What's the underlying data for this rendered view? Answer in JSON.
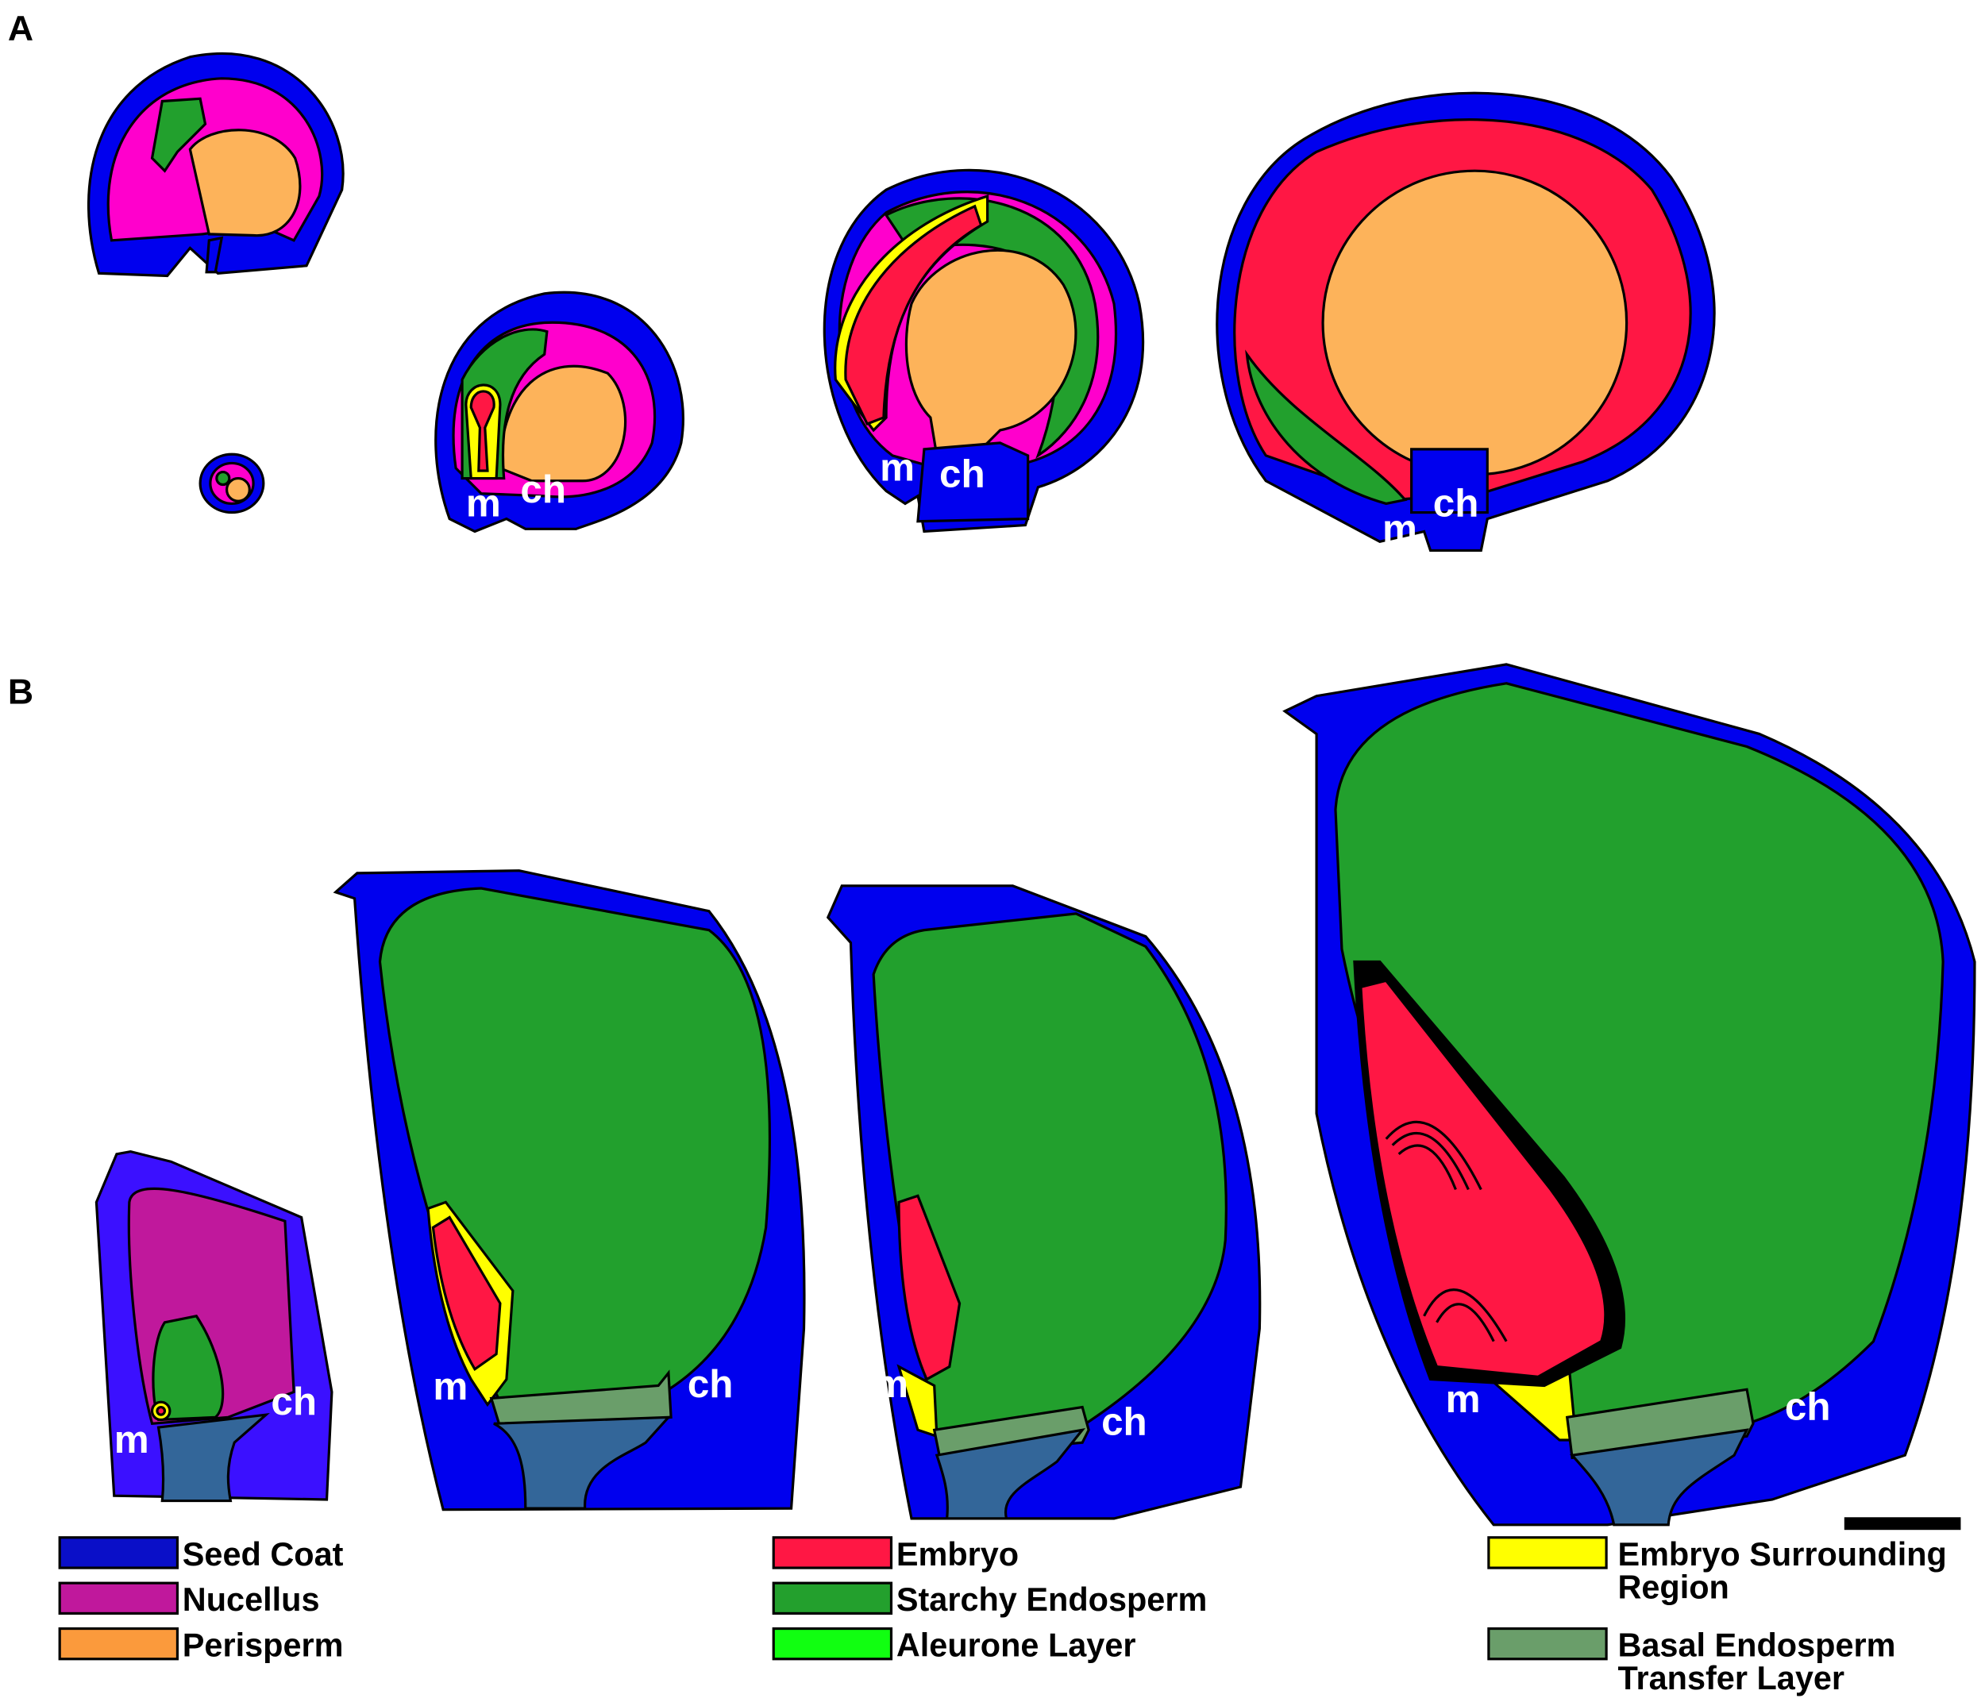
{
  "panel_a": {
    "label": "A",
    "sections": [
      {
        "m": "m",
        "ch": "ch"
      },
      {
        "m": "m",
        "ch": "ch"
      },
      {
        "m": "m",
        "ch": "ch"
      }
    ]
  },
  "panel_b": {
    "label": "B",
    "sections": [
      {
        "m": "m",
        "ch": "ch"
      },
      {
        "m": "m",
        "ch": "ch"
      },
      {
        "m": "m",
        "ch": "ch"
      },
      {
        "m": "m",
        "ch": "ch"
      }
    ]
  },
  "legend": [
    {
      "label": "Seed Coat",
      "color": "#0a0fc8"
    },
    {
      "label": "Nucellus",
      "color": "#c0189c"
    },
    {
      "label": "Perisperm",
      "color": "#fb9a3c"
    },
    {
      "label": "Embryo",
      "color": "#ff1744"
    },
    {
      "label": "Starchy Endosperm",
      "color": "#23a02d"
    },
    {
      "label": "Aleurone Layer",
      "color": "#11ff11"
    },
    {
      "label": "Embryo Surrounding Region",
      "color": "#ffff00"
    },
    {
      "label": "Basal Endosperm Transfer Layer",
      "color": "#6a9e6a"
    }
  ]
}
